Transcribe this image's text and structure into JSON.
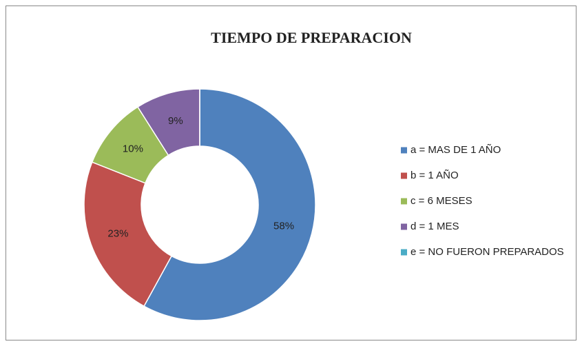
{
  "chart_data": {
    "type": "donut",
    "title": "TIEMPO DE PREPARACION",
    "categories": [
      "a = MAS DE 1 AÑO",
      "b = 1 AÑO",
      "c = 6 MESES",
      "d = 1 MES",
      "e = NO FUERON PREPARADOS"
    ],
    "values": [
      58,
      23,
      10,
      9,
      0
    ],
    "value_labels": [
      "58%",
      "23%",
      "10%",
      "9%",
      null
    ],
    "colors": [
      "#4f81bd",
      "#c0504d",
      "#9bbb59",
      "#8064a2",
      "#4bacc6"
    ],
    "legend": "right"
  }
}
